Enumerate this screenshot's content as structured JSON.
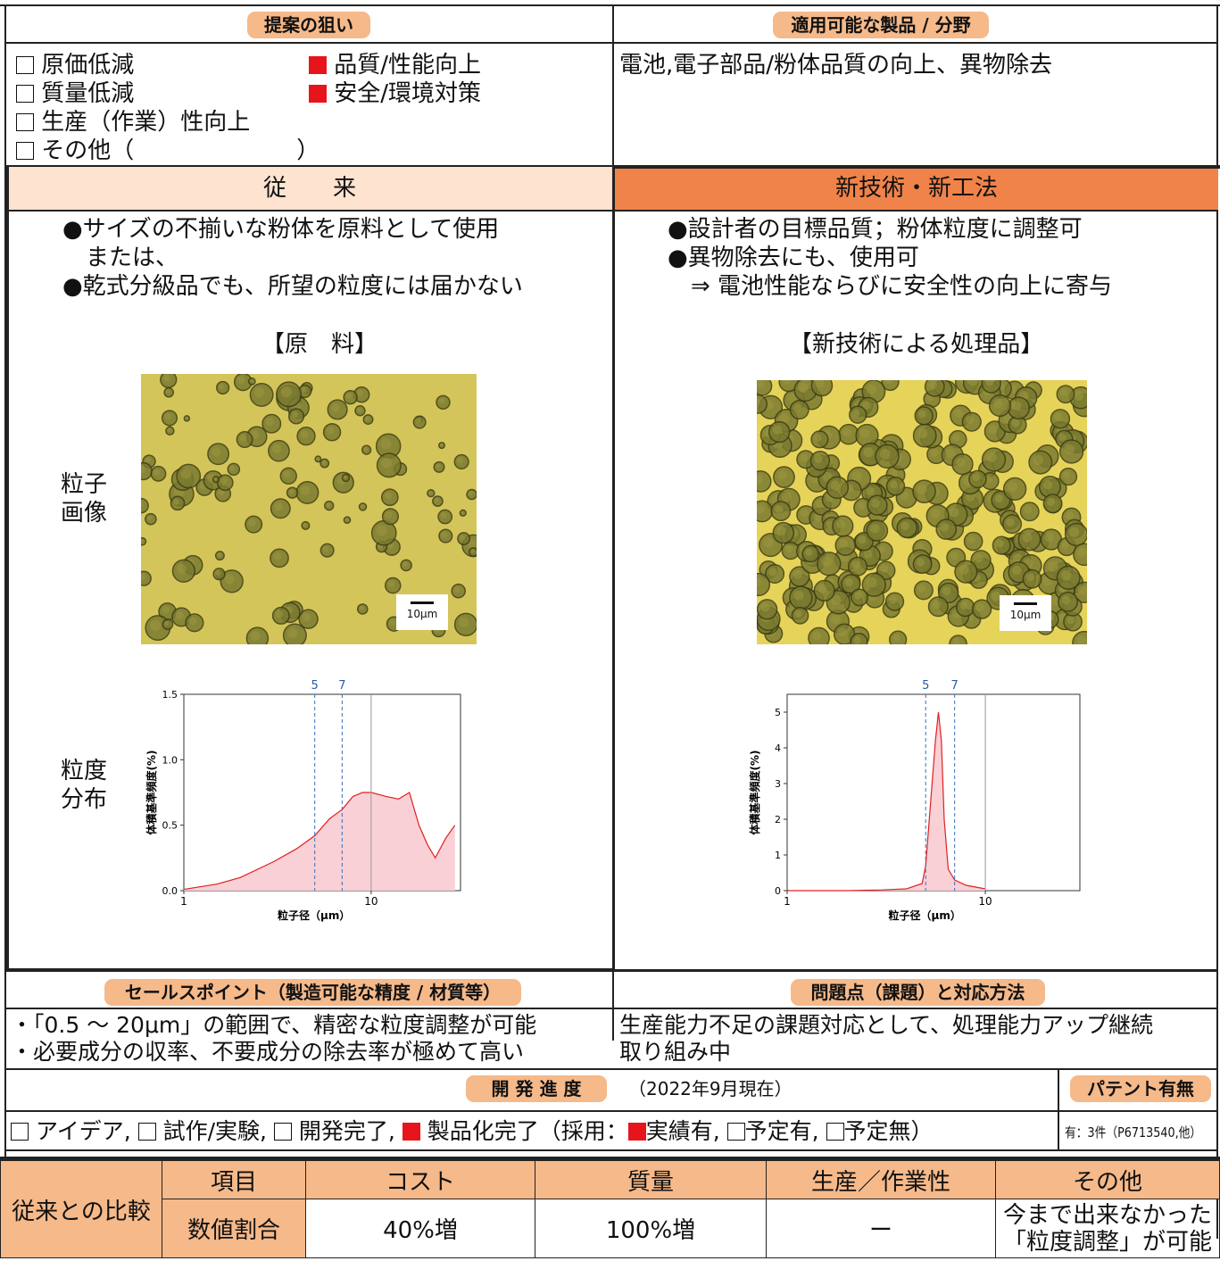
{
  "header": {
    "purpose_label": "提案の狙い",
    "applicable_label": "適用可能な製品 / 分野"
  },
  "purpose": {
    "items": [
      {
        "label": "原価低減",
        "checked": false
      },
      {
        "label": "質量低減",
        "checked": false
      },
      {
        "label": "生産（作業）性向上",
        "checked": false
      },
      {
        "label": "その他（　　　　　　　）",
        "checked": false
      },
      {
        "label": "品質/性能向上",
        "checked": true
      },
      {
        "label": "安全/環境対策",
        "checked": true
      }
    ]
  },
  "applicable_text": "電池,電子部品/粉体品質の向上、異物除去",
  "conventional": {
    "title": "従　　来",
    "lines": [
      "●サイズの不揃いな粉体を原料として使用",
      "　または、",
      "●乾式分級品でも、所望の粒度には届かない"
    ],
    "image_caption": "【原　料】",
    "scale_bar": "10μm"
  },
  "newtech": {
    "title": "新技術・新工法",
    "lines": [
      "●設計者の目標品質；粉体粒度に調整可",
      "●異物除去にも、使用可",
      "　⇒ 電池性能ならびに安全性の向上に寄与"
    ],
    "image_caption": "【新技術による処理品】",
    "scale_bar": "10μm"
  },
  "row_labels": {
    "particle_image": [
      "粒子",
      "画像"
    ],
    "distribution": [
      "粒度",
      "分布"
    ]
  },
  "chart_data": [
    {
      "type": "area",
      "xlabel": "粒子径（μm）",
      "ylabel": "体積基準頻度(%)",
      "xscale": "log",
      "xlim": [
        1,
        30
      ],
      "ylim": [
        0,
        1.5
      ],
      "yticks": [
        "0.0",
        "0.5",
        "1.0",
        "1.5"
      ],
      "xticks": [
        "1",
        "10"
      ],
      "markers": [
        "5",
        "7"
      ],
      "x": [
        1,
        1.5,
        2,
        3,
        4,
        5,
        6,
        7,
        8,
        9,
        10,
        12,
        14,
        16,
        18,
        20,
        22,
        25,
        28
      ],
      "y": [
        0.01,
        0.05,
        0.1,
        0.22,
        0.32,
        0.42,
        0.55,
        0.62,
        0.72,
        0.75,
        0.75,
        0.72,
        0.7,
        0.75,
        0.5,
        0.35,
        0.25,
        0.4,
        0.5
      ],
      "color": "#e02020",
      "fill": "#f8d0d6"
    },
    {
      "type": "area",
      "xlabel": "粒子径（μm）",
      "ylabel": "体積基準頻度(%)",
      "xscale": "log",
      "xlim": [
        1,
        30
      ],
      "ylim": [
        0,
        5.5
      ],
      "yticks": [
        "0",
        "1",
        "2",
        "3",
        "4",
        "5"
      ],
      "xticks": [
        "1",
        "10"
      ],
      "markers": [
        "5",
        "7"
      ],
      "x": [
        1,
        2,
        3,
        4,
        4.8,
        5.0,
        5.3,
        5.6,
        5.8,
        6.0,
        6.2,
        6.5,
        7,
        8,
        10
      ],
      "y": [
        0,
        0,
        0.02,
        0.05,
        0.2,
        0.7,
        2.5,
        4.2,
        5.0,
        4.2,
        2.0,
        0.6,
        0.3,
        0.15,
        0.05
      ],
      "color": "#e02020",
      "fill": "#f8d0d6"
    }
  ],
  "selling_points": {
    "label": "セールスポイント（製造可能な精度 / 材質等）",
    "lines": [
      "・「0.5 ～ 20μm」の範囲で、精密な粒度調整が可能",
      "・必要成分の収率、不要成分の除去率が極めて高い"
    ]
  },
  "problems": {
    "label": "問題点（課題）と対応方法",
    "lines": [
      "生産能力不足の課題対応として、処理能力アップ継続",
      "取り組み中"
    ]
  },
  "progress": {
    "label": "開 発 進 度",
    "date": "（2022年9月現在）",
    "patent_label": "パテント有無",
    "patent_value": "有：3件（P6713540,他）",
    "items": [
      {
        "label": "アイデア,",
        "checked": false
      },
      {
        "label": "試作/実験,",
        "checked": false
      },
      {
        "label": "開発完了,",
        "checked": false
      },
      {
        "label": "製品化完了（採用：",
        "checked": true
      },
      {
        "label": "実績有,",
        "checked": true
      },
      {
        "label": "予定有,",
        "checked": false
      },
      {
        "label": "予定無）",
        "checked": false
      }
    ]
  },
  "comparison": {
    "row_label": "従来との比較",
    "headers": [
      "項目",
      "コスト",
      "質量",
      "生産／作業性",
      "その他"
    ],
    "values": [
      "数値割合",
      "40%増",
      "100%増",
      "ー",
      "今まで出来なかった「粒度調整」が可能"
    ],
    "other_lines": [
      "今まで出来なかった",
      "「粒度調整」が可能"
    ]
  },
  "colors": {
    "header_fill": "#f5b98a",
    "conventional_fill": "#fde3d0",
    "newtech_fill": "#f0834a",
    "checked_fill": "#e8141c"
  }
}
